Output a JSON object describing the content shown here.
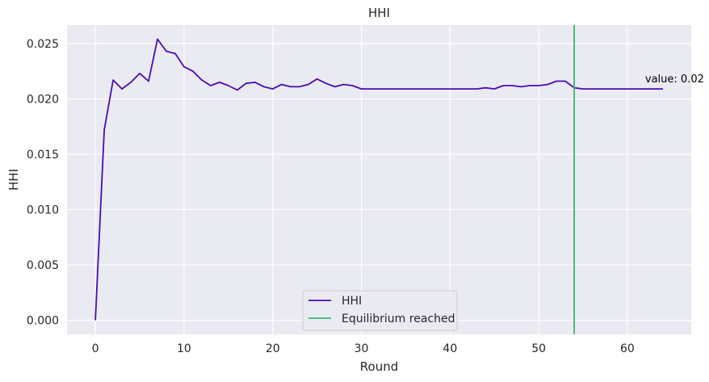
{
  "chart_data": {
    "type": "line",
    "title": "HHI",
    "xlabel": "Round",
    "ylabel": "HHI",
    "xlim": [
      -3.2,
      67.2
    ],
    "ylim": [
      -0.00127,
      0.02667
    ],
    "x_ticks": [
      0,
      10,
      20,
      30,
      40,
      50,
      60
    ],
    "y_ticks": [
      0.0,
      0.005,
      0.01,
      0.015,
      0.02,
      0.025
    ],
    "y_tick_labels": [
      "0.000",
      "0.005",
      "0.010",
      "0.015",
      "0.020",
      "0.025"
    ],
    "x_tick_labels": [
      "0",
      "10",
      "20",
      "30",
      "40",
      "50",
      "60"
    ],
    "grid": true,
    "legend_position": "bottom-center",
    "series": [
      {
        "name": "HHI",
        "color": "#4b0bb5",
        "x": [
          0,
          1,
          2,
          3,
          4,
          5,
          6,
          7,
          8,
          9,
          10,
          11,
          12,
          13,
          14,
          15,
          16,
          17,
          18,
          19,
          20,
          21,
          22,
          23,
          24,
          25,
          26,
          27,
          28,
          29,
          30,
          31,
          32,
          33,
          34,
          35,
          36,
          37,
          38,
          39,
          40,
          41,
          42,
          43,
          44,
          45,
          46,
          47,
          48,
          49,
          50,
          51,
          52,
          53,
          54,
          55,
          56,
          57,
          58,
          59,
          60,
          61,
          62,
          63,
          64
        ],
        "values": [
          0.0,
          0.0172,
          0.0217,
          0.0209,
          0.0215,
          0.0223,
          0.0216,
          0.0254,
          0.0243,
          0.0241,
          0.0229,
          0.0225,
          0.0217,
          0.0212,
          0.0215,
          0.0212,
          0.0208,
          0.0214,
          0.0215,
          0.0211,
          0.0209,
          0.0213,
          0.0211,
          0.0211,
          0.0213,
          0.0218,
          0.0214,
          0.0211,
          0.0213,
          0.0212,
          0.0209,
          0.0209,
          0.0209,
          0.0209,
          0.0209,
          0.0209,
          0.0209,
          0.0209,
          0.0209,
          0.0209,
          0.0209,
          0.0209,
          0.0209,
          0.0209,
          0.021,
          0.0209,
          0.0212,
          0.0212,
          0.0211,
          0.0212,
          0.0212,
          0.0213,
          0.0216,
          0.0216,
          0.021,
          0.0209,
          0.0209,
          0.0209,
          0.0209,
          0.0209,
          0.0209,
          0.0209,
          0.0209,
          0.0209,
          0.0209
        ]
      }
    ],
    "vline": {
      "name": "Equilibrium reached",
      "x": 54,
      "color": "#3cb371"
    },
    "annotation": {
      "text": "value: 0.02",
      "x": 62,
      "y": 0.0215
    }
  },
  "style": {
    "plot_background": "#eaeaf2",
    "grid_color": "#ffffff"
  }
}
